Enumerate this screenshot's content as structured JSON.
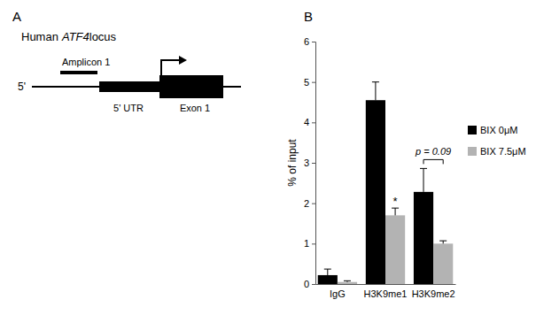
{
  "panel_a": {
    "label": "A",
    "title": {
      "species": "Human",
      "gene": "ATF4",
      "suffix": "locus"
    },
    "five_prime": "5'",
    "amplicon": "Amplicon 1",
    "utr": "5' UTR",
    "exon": "Exon 1"
  },
  "chart_data": {
    "type": "bar",
    "panel_label": "B",
    "ylabel": "% of input",
    "categories": [
      "IgG",
      "H3K9me1",
      "H3K9me2"
    ],
    "series": [
      {
        "name": "BIX 0μM",
        "color": "#000000",
        "values": [
          0.22,
          4.55,
          2.28
        ],
        "errors": [
          0.15,
          0.45,
          0.58
        ]
      },
      {
        "name": "BIX 7.5μM",
        "color": "#b3b3b3",
        "values": [
          0.05,
          1.7,
          1.0
        ],
        "errors": [
          0.03,
          0.18,
          0.07
        ]
      }
    ],
    "ylim": [
      0,
      6
    ],
    "yticks": [
      0,
      1,
      2,
      3,
      4,
      5,
      6
    ],
    "legend": "right",
    "grid": false,
    "annotations": [
      {
        "text": "*"
      },
      {
        "text": "p = 0.09"
      }
    ]
  }
}
